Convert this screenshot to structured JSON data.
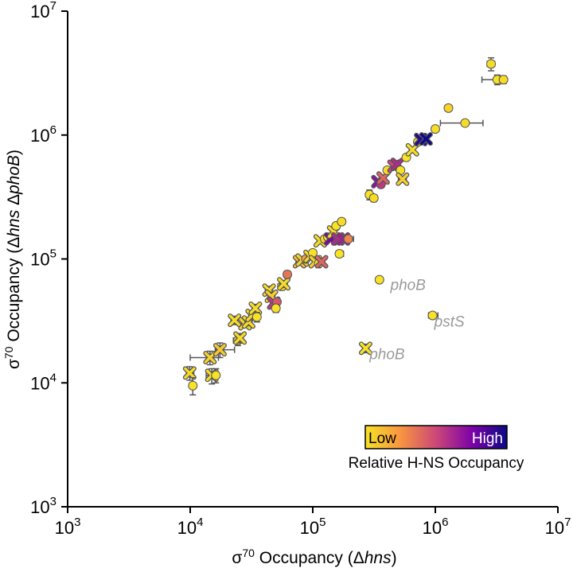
{
  "chart_data": {
    "type": "scatter",
    "xlabel": {
      "prefix": "σ",
      "sup": "70",
      "text": " Occupancy (",
      "delta": "Δ",
      "gene": "hns",
      "close": ")"
    },
    "ylabel": {
      "prefix": "σ",
      "sup": "70",
      "text": " Occupancy (",
      "delta1": "Δ",
      "gene1": "hns",
      "delta2": " Δ",
      "gene2": "phoB",
      "close": ")"
    },
    "xlim": [
      1000,
      10000000
    ],
    "ylim": [
      1000,
      10000000
    ],
    "scale": "log",
    "x_ticks": [
      {
        "value": 1000,
        "base": "10",
        "exp": "3"
      },
      {
        "value": 10000,
        "base": "10",
        "exp": "4"
      },
      {
        "value": 100000,
        "base": "10",
        "exp": "5"
      },
      {
        "value": 1000000,
        "base": "10",
        "exp": "6"
      },
      {
        "value": 10000000,
        "base": "10",
        "exp": "7"
      }
    ],
    "y_ticks": [
      {
        "value": 1000,
        "base": "10",
        "exp": "3"
      },
      {
        "value": 10000,
        "base": "10",
        "exp": "4"
      },
      {
        "value": 100000,
        "base": "10",
        "exp": "5"
      },
      {
        "value": 1000000,
        "base": "10",
        "exp": "6"
      },
      {
        "value": 10000000,
        "base": "10",
        "exp": "7"
      }
    ],
    "colorbar": {
      "low_label": "Low",
      "high_label": "High",
      "title": "Relative H-NS Occupancy",
      "colors": [
        "#f7e225",
        "#f89441",
        "#cc4778",
        "#7e03a8",
        "#0d0887"
      ]
    },
    "annotations": [
      {
        "text": "phoB",
        "x": 430000,
        "y": 56000
      },
      {
        "text": "pstS",
        "x": 980000,
        "y": 28500
      },
      {
        "text": "phoB",
        "x": 290000,
        "y": 15500
      }
    ],
    "points": [
      {
        "x": 9900,
        "y": 12000,
        "xerr": [
          9300,
          10700
        ],
        "yerr": [
          10500,
          13500
        ],
        "marker": "x",
        "h": 0.02
      },
      {
        "x": 10500,
        "y": 9500,
        "xerr": [
          9900,
          11100
        ],
        "yerr": [
          8000,
          11000
        ],
        "marker": "o",
        "h": 0.0
      },
      {
        "x": 14500,
        "y": 16000,
        "xerr": [
          10000,
          17000
        ],
        "yerr": [
          14000,
          18000
        ],
        "marker": "x",
        "h": 0.05
      },
      {
        "x": 15000,
        "y": 11500,
        "xerr": [
          13500,
          16500
        ],
        "yerr": [
          9800,
          13000
        ],
        "marker": "x",
        "h": 0.02
      },
      {
        "x": 16200,
        "y": 11500,
        "xerr": [
          15300,
          17200
        ],
        "yerr": [
          10000,
          13000
        ],
        "marker": "o",
        "h": 0.0
      },
      {
        "x": 17500,
        "y": 18500,
        "xerr": [
          16000,
          23000
        ],
        "yerr": [
          16000,
          21000
        ],
        "marker": "x",
        "h": 0.08
      },
      {
        "x": 23000,
        "y": 32000,
        "xerr": [
          21500,
          24500
        ],
        "yerr": [
          29500,
          34500
        ],
        "marker": "x",
        "h": 0.02
      },
      {
        "x": 24500,
        "y": 22000,
        "xerr": [
          22500,
          26500
        ],
        "yerr": [
          20000,
          24000
        ],
        "marker": "o",
        "h": 0.0
      },
      {
        "x": 25500,
        "y": 23000,
        "xerr": [
          24000,
          27000
        ],
        "yerr": [
          21000,
          25000
        ],
        "marker": "x",
        "h": 0.03
      },
      {
        "x": 28000,
        "y": 30000,
        "xerr": [
          26000,
          30000
        ],
        "yerr": [
          28000,
          32000
        ],
        "marker": "x",
        "h": 0.05
      },
      {
        "x": 30000,
        "y": 31000,
        "xerr": [
          28000,
          32000
        ],
        "yerr": [
          29000,
          33000
        ],
        "marker": "x",
        "h": 0.02
      },
      {
        "x": 32000,
        "y": 35000,
        "xerr": [
          30000,
          34000
        ],
        "yerr": [
          32000,
          38000
        ],
        "marker": "x",
        "h": 0.03
      },
      {
        "x": 34000,
        "y": 40000,
        "xerr": [
          32000,
          36000
        ],
        "yerr": [
          37000,
          43000
        ],
        "marker": "x",
        "h": 0.02
      },
      {
        "x": 35000,
        "y": 34000,
        "xerr": [
          33000,
          37000
        ],
        "yerr": [
          31000,
          37000
        ],
        "marker": "o",
        "h": 0.0
      },
      {
        "x": 44000,
        "y": 56000,
        "xerr": [
          41000,
          47000
        ],
        "yerr": [
          52000,
          60000
        ],
        "marker": "x",
        "h": 0.03
      },
      {
        "x": 46000,
        "y": 50000,
        "xerr": [
          43000,
          49000
        ],
        "yerr": [
          46000,
          54000
        ],
        "marker": "x",
        "h": 0.05
      },
      {
        "x": 48000,
        "y": 44000,
        "xerr": [
          45000,
          51000
        ],
        "yerr": [
          41000,
          47000
        ],
        "marker": "x",
        "h": 0.55
      },
      {
        "x": 51000,
        "y": 45000,
        "xerr": [
          48000,
          54000
        ],
        "yerr": [
          42000,
          48000
        ],
        "marker": "o",
        "h": 0.45
      },
      {
        "x": 50000,
        "y": 40000,
        "xerr": [
          47000,
          53000
        ],
        "yerr": [
          37000,
          43000
        ],
        "marker": "o",
        "h": 0.0
      },
      {
        "x": 56000,
        "y": 60000,
        "xerr": [
          52000,
          60000
        ],
        "yerr": [
          56000,
          64000
        ],
        "marker": "o",
        "h": 0.03
      },
      {
        "x": 58000,
        "y": 63000,
        "xerr": [
          54000,
          62000
        ],
        "yerr": [
          59000,
          67000
        ],
        "marker": "x",
        "h": 0.02
      },
      {
        "x": 62000,
        "y": 75000,
        "xerr": [
          58000,
          66000
        ],
        "yerr": [
          70000,
          80000
        ],
        "marker": "o",
        "h": 0.35
      },
      {
        "x": 78000,
        "y": 95000,
        "xerr": [
          73000,
          83000
        ],
        "yerr": [
          90000,
          100000
        ],
        "marker": "x",
        "h": 0.1
      },
      {
        "x": 82000,
        "y": 98000,
        "xerr": [
          77000,
          87000
        ],
        "yerr": [
          93000,
          103000
        ],
        "marker": "x",
        "h": 0.05
      },
      {
        "x": 88000,
        "y": 100000,
        "xerr": [
          83000,
          93000
        ],
        "yerr": [
          95000,
          106000
        ],
        "marker": "o",
        "h": 0.2
      },
      {
        "x": 95000,
        "y": 105000,
        "xerr": [
          89000,
          101000
        ],
        "yerr": [
          99000,
          111000
        ],
        "marker": "x",
        "h": 0.03
      },
      {
        "x": 100000,
        "y": 112000,
        "xerr": [
          94000,
          106000
        ],
        "yerr": [
          106000,
          118000
        ],
        "marker": "o",
        "h": 0.0
      },
      {
        "x": 105000,
        "y": 95000,
        "xerr": [
          99000,
          111000
        ],
        "yerr": [
          90000,
          100000
        ],
        "marker": "x",
        "h": 0.05
      },
      {
        "x": 112000,
        "y": 92000,
        "xerr": [
          106000,
          118000
        ],
        "yerr": [
          87000,
          97000
        ],
        "marker": "o",
        "h": 0.0
      },
      {
        "x": 118000,
        "y": 95000,
        "xerr": [
          112000,
          124000
        ],
        "yerr": [
          90000,
          100000
        ],
        "marker": "x",
        "h": 0.4
      },
      {
        "x": 115000,
        "y": 140000,
        "xerr": [
          109000,
          121000
        ],
        "yerr": [
          133000,
          147000
        ],
        "marker": "x",
        "h": 0.02
      },
      {
        "x": 125000,
        "y": 145000,
        "xerr": [
          118000,
          132000
        ],
        "yerr": [
          137000,
          153000
        ],
        "marker": "o",
        "h": 0.05
      },
      {
        "x": 133000,
        "y": 150000,
        "xerr": [
          126000,
          140000
        ],
        "yerr": [
          142000,
          158000
        ],
        "marker": "o",
        "h": 0.0
      },
      {
        "x": 140000,
        "y": 145000,
        "xerr": [
          132000,
          148000
        ],
        "yerr": [
          138000,
          152000
        ],
        "marker": "x",
        "h": 0.75
      },
      {
        "x": 148000,
        "y": 165000,
        "xerr": [
          140000,
          156000
        ],
        "yerr": [
          157000,
          173000
        ],
        "marker": "x",
        "h": 0.02
      },
      {
        "x": 155000,
        "y": 185000,
        "xerr": [
          147000,
          163000
        ],
        "yerr": [
          176000,
          194000
        ],
        "marker": "o",
        "h": 0.0
      },
      {
        "x": 160000,
        "y": 145000,
        "xerr": [
          152000,
          168000
        ],
        "yerr": [
          138000,
          152000
        ],
        "marker": "x",
        "h": 0.6
      },
      {
        "x": 172000,
        "y": 200000,
        "xerr": [
          162000,
          182000
        ],
        "yerr": [
          190000,
          210000
        ],
        "marker": "o",
        "h": 0.02
      },
      {
        "x": 178000,
        "y": 145000,
        "xerr": [
          168000,
          188000
        ],
        "yerr": [
          138000,
          152000
        ],
        "marker": "x",
        "h": 0.65
      },
      {
        "x": 195000,
        "y": 145000,
        "xerr": [
          180000,
          215000
        ],
        "yerr": [
          137000,
          153000
        ],
        "marker": "o",
        "h": 0.3
      },
      {
        "x": 165000,
        "y": 110000,
        "xerr": [
          155000,
          178000
        ],
        "yerr": [
          104000,
          116000
        ],
        "marker": "o",
        "h": 0.0
      },
      {
        "x": 290000,
        "y": 330000,
        "xerr": [
          275000,
          305000
        ],
        "yerr": [
          300000,
          360000
        ],
        "marker": "o",
        "h": 0.0
      },
      {
        "x": 315000,
        "y": 310000,
        "xerr": [
          300000,
          330000
        ],
        "yerr": [
          290000,
          330000
        ],
        "marker": "o",
        "h": 0.02
      },
      {
        "x": 340000,
        "y": 420000,
        "xerr": [
          322000,
          358000
        ],
        "yerr": [
          395000,
          445000
        ],
        "marker": "x",
        "h": 0.7
      },
      {
        "x": 360000,
        "y": 400000,
        "xerr": [
          340000,
          380000
        ],
        "yerr": [
          375000,
          425000
        ],
        "marker": "o",
        "h": 0.55
      },
      {
        "x": 375000,
        "y": 450000,
        "xerr": [
          355000,
          395000
        ],
        "yerr": [
          425000,
          475000
        ],
        "marker": "x",
        "h": 0.4
      },
      {
        "x": 405000,
        "y": 520000,
        "xerr": [
          385000,
          425000
        ],
        "yerr": [
          490000,
          550000
        ],
        "marker": "o",
        "h": 0.02
      },
      {
        "x": 460000,
        "y": 560000,
        "xerr": [
          435000,
          485000
        ],
        "yerr": [
          530000,
          590000
        ],
        "marker": "x",
        "h": 0.5
      },
      {
        "x": 490000,
        "y": 580000,
        "xerr": [
          465000,
          515000
        ],
        "yerr": [
          550000,
          610000
        ],
        "marker": "x",
        "h": 0.6
      },
      {
        "x": 520000,
        "y": 520000,
        "xerr": [
          490000,
          550000
        ],
        "yerr": [
          490000,
          550000
        ],
        "marker": "o",
        "h": 0.0
      },
      {
        "x": 540000,
        "y": 440000,
        "xerr": [
          500000,
          580000
        ],
        "yerr": [
          415000,
          465000
        ],
        "marker": "x",
        "h": 0.05
      },
      {
        "x": 580000,
        "y": 660000,
        "xerr": [
          550000,
          610000
        ],
        "yerr": [
          630000,
          690000
        ],
        "marker": "o",
        "h": 0.0
      },
      {
        "x": 650000,
        "y": 760000,
        "xerr": [
          615000,
          685000
        ],
        "yerr": [
          725000,
          795000
        ],
        "marker": "x",
        "h": 0.02
      },
      {
        "x": 720000,
        "y": 880000,
        "xerr": [
          680000,
          760000
        ],
        "yerr": [
          840000,
          920000
        ],
        "marker": "o",
        "h": 0.03
      },
      {
        "x": 760000,
        "y": 920000,
        "xerr": [
          720000,
          800000
        ],
        "yerr": [
          880000,
          960000
        ],
        "marker": "x",
        "h": 0.95
      },
      {
        "x": 840000,
        "y": 930000,
        "xerr": [
          790000,
          890000
        ],
        "yerr": [
          890000,
          970000
        ],
        "marker": "x",
        "h": 1.0
      },
      {
        "x": 1000000,
        "y": 1120000,
        "xerr": [
          950000,
          1050000
        ],
        "yerr": [
          1070000,
          1170000
        ],
        "marker": "o",
        "h": 0.02
      },
      {
        "x": 1280000,
        "y": 1650000,
        "xerr": [
          1200000,
          1360000
        ],
        "yerr": [
          1580000,
          1720000
        ],
        "marker": "o",
        "h": 0.05
      },
      {
        "x": 1750000,
        "y": 1250000,
        "xerr": [
          1100000,
          2450000
        ],
        "yerr": [
          1200000,
          1300000
        ],
        "marker": "o",
        "h": 0.02
      },
      {
        "x": 2850000,
        "y": 3750000,
        "xerr": [
          2650000,
          3050000
        ],
        "yerr": [
          3300000,
          4200000
        ],
        "marker": "o",
        "h": 0.02
      },
      {
        "x": 3200000,
        "y": 2800000,
        "xerr": [
          2400000,
          3800000
        ],
        "yerr": [
          2550000,
          3050000
        ],
        "marker": "o",
        "h": 0.0
      },
      {
        "x": 3600000,
        "y": 2800000,
        "xerr": [
          3400000,
          3800000
        ],
        "yerr": [
          2600000,
          3000000
        ],
        "marker": "o",
        "h": 0.03
      },
      {
        "x": 350000,
        "y": 68000,
        "xerr": [
          330000,
          370000
        ],
        "yerr": [
          64000,
          72000
        ],
        "marker": "o",
        "h": 0.0
      },
      {
        "x": 950000,
        "y": 35000,
        "xerr": [
          880000,
          1050000
        ],
        "yerr": [
          33000,
          37000
        ],
        "marker": "o",
        "h": 0.0
      },
      {
        "x": 270000,
        "y": 19000,
        "xerr": [
          255000,
          285000
        ],
        "yerr": [
          17500,
          20500
        ],
        "marker": "x",
        "h": 0.0
      }
    ]
  }
}
